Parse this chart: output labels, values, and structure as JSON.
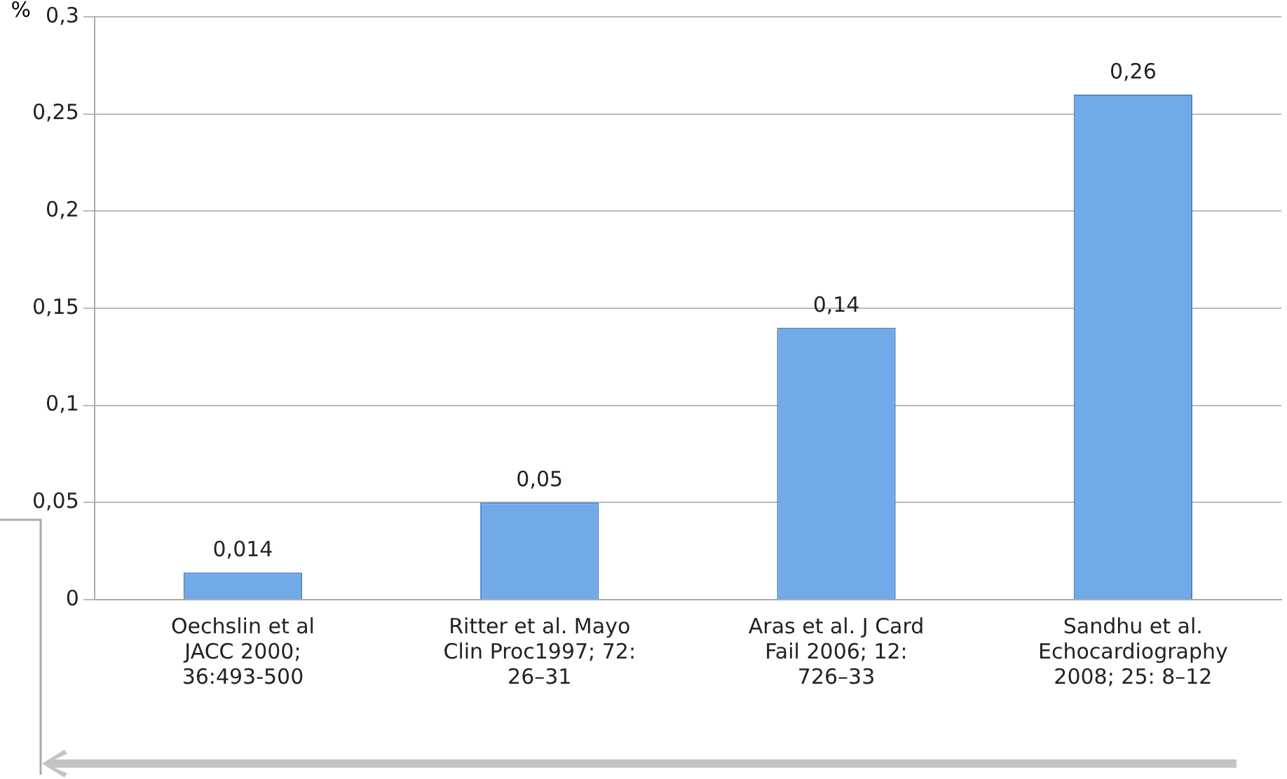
{
  "chart_data": {
    "type": "bar",
    "ylabel": "%",
    "categories": [
      "Oechslin et al JACC 2000; 36:493-500",
      "Ritter et al. Mayo Clin Proc1997; 72: 26–31",
      "Aras et al. J Card Fail 2006; 12: 726–33",
      "Sandhu et al. Echocardiography 2008; 25: 8–12"
    ],
    "values": [
      0.014,
      0.05,
      0.14,
      0.26
    ],
    "value_labels": [
      "0,014",
      "0,05",
      "0,14",
      "0,26"
    ],
    "color": "#72a9e8",
    "ylim": [
      0,
      0.3
    ],
    "yticks": [
      {
        "value": 0,
        "label": "0"
      },
      {
        "value": 0.05,
        "label": "0,05"
      },
      {
        "value": 0.1,
        "label": "0,1"
      },
      {
        "value": 0.15,
        "label": "0,15"
      },
      {
        "value": 0.2,
        "label": "0,2"
      },
      {
        "value": 0.25,
        "label": "0,25"
      },
      {
        "value": 0.3,
        "label": "0,3"
      }
    ],
    "grid": "y",
    "legend": false
  }
}
